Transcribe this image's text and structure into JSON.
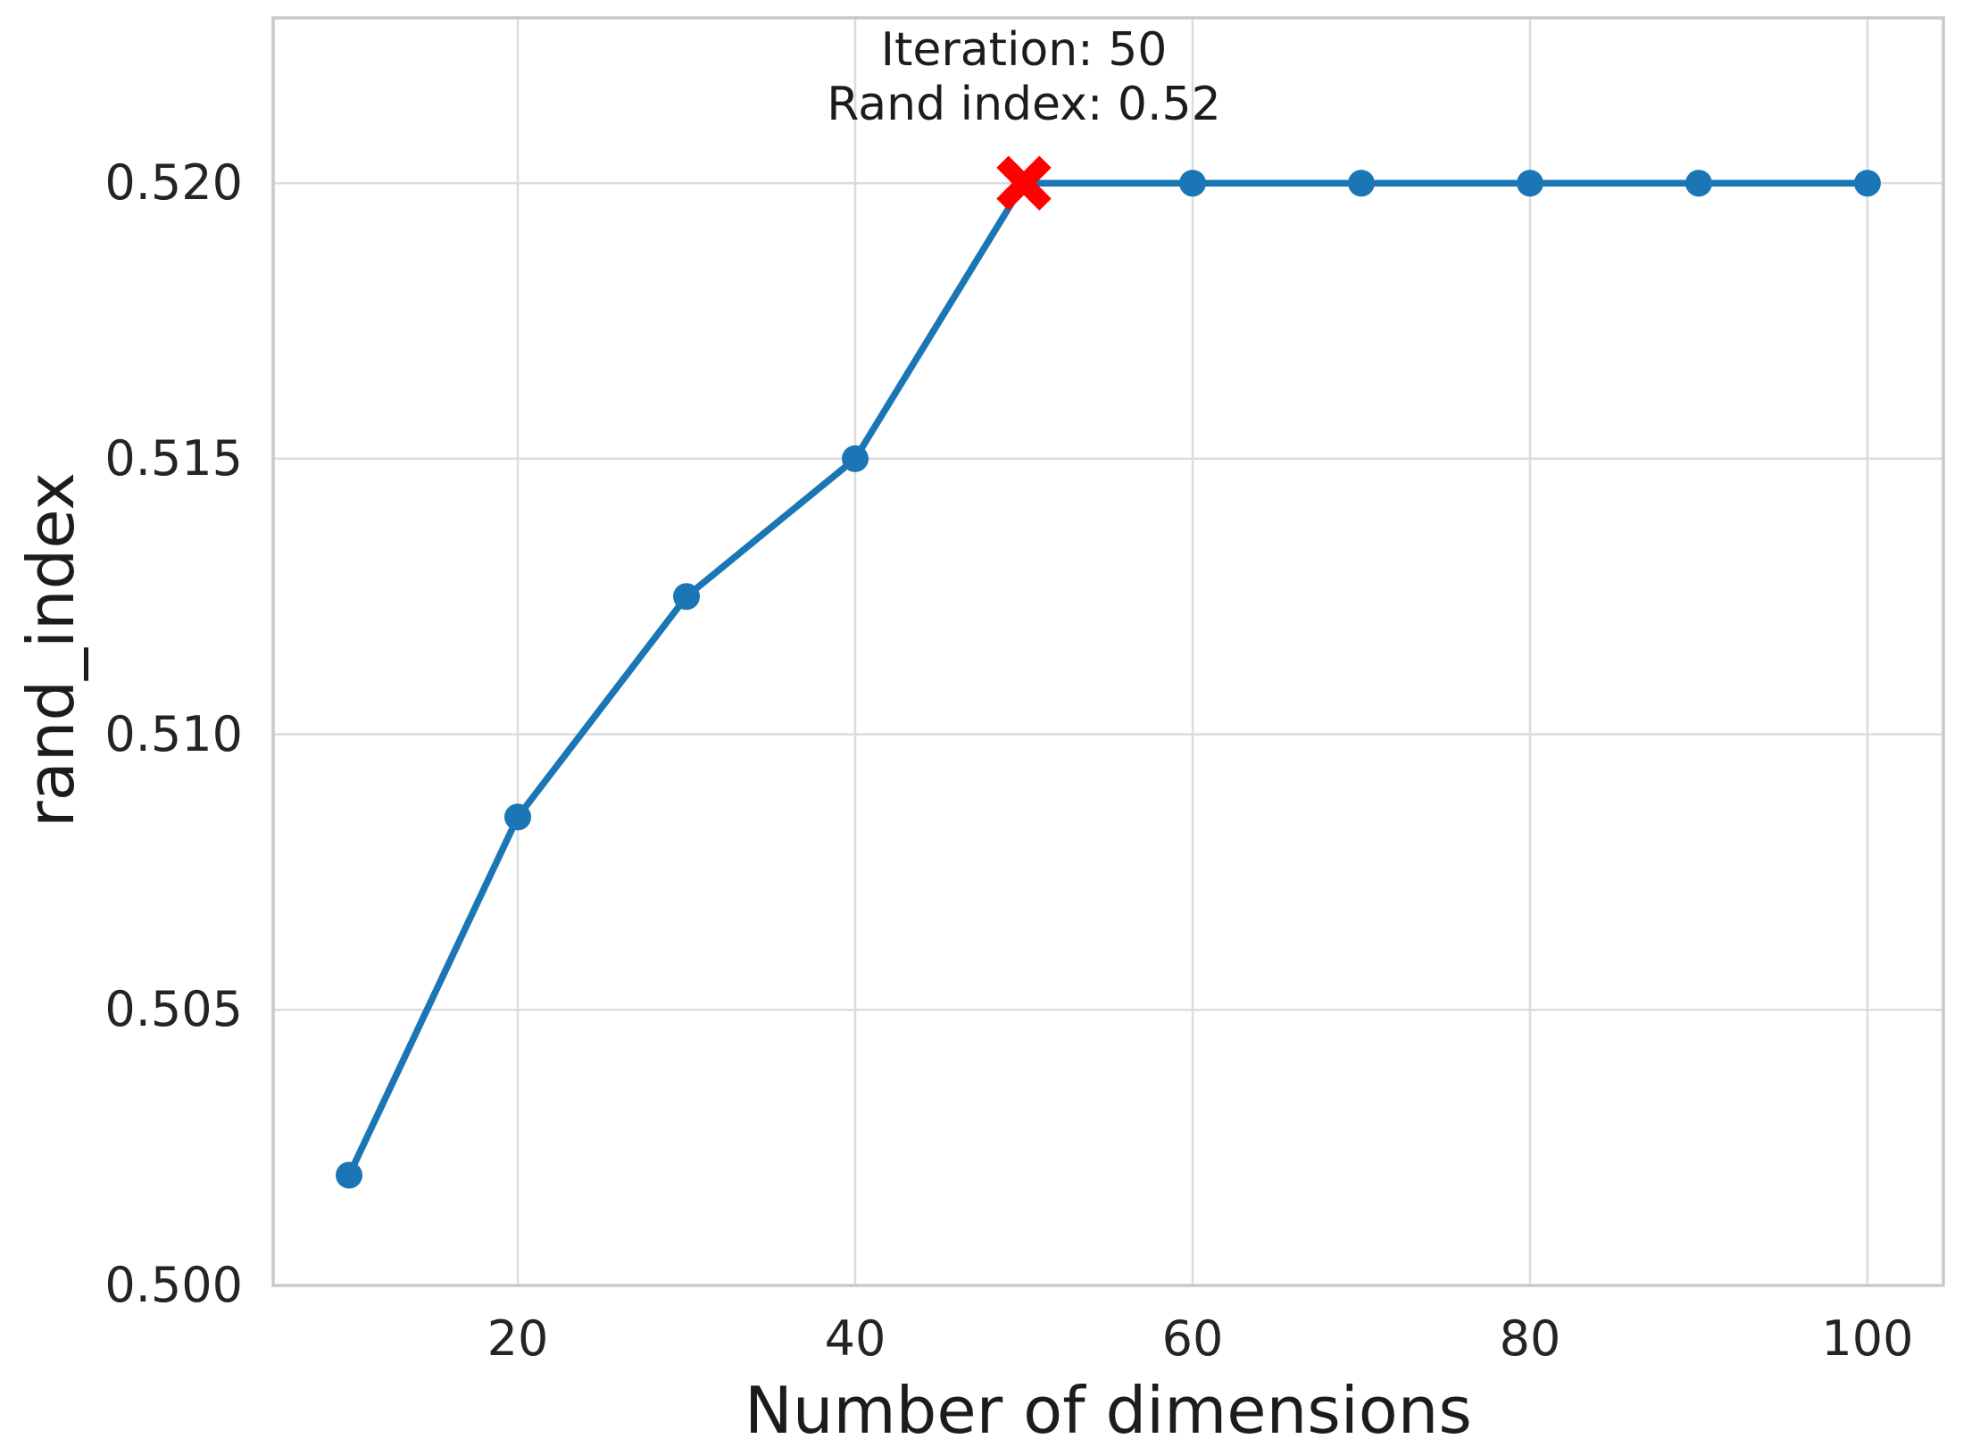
{
  "figure": {
    "xlabel": "Number of dimensions",
    "ylabel": "rand_index"
  },
  "chart_data": {
    "type": "line",
    "title": "",
    "xlabel": "Number of dimensions",
    "ylabel": "rand_index",
    "x": [
      10,
      20,
      30,
      40,
      50,
      60,
      70,
      80,
      90,
      100
    ],
    "series": [
      {
        "name": "rand_index",
        "values": [
          0.502,
          0.5085,
          0.5125,
          0.515,
          0.52,
          0.52,
          0.52,
          0.52,
          0.52,
          0.52
        ],
        "color": "#1b76b5",
        "marker": "circle"
      }
    ],
    "xlim": [
      5.5,
      104.5
    ],
    "ylim": [
      0.5,
      0.523
    ],
    "xticks": [
      20,
      40,
      60,
      80,
      100
    ],
    "xtick_labels": [
      "20",
      "40",
      "60",
      "80",
      "100"
    ],
    "yticks": [
      0.5,
      0.505,
      0.51,
      0.515,
      0.52
    ],
    "ytick_labels": [
      "0.500",
      "0.505",
      "0.510",
      "0.515",
      "0.520"
    ],
    "grid": true,
    "legend_position": "none",
    "highlight_point": {
      "x": 50,
      "y": 0.52,
      "marker": "X",
      "color": "#ff0000"
    },
    "annotation": {
      "line1": "Iteration: 50",
      "line2": "Rand index: 0.52",
      "anchor_x": 50,
      "anchor_y": 0.52,
      "position": "above"
    },
    "colors": {
      "line": "#1b76b5",
      "highlight": "#ff0000",
      "grid": "#dcdcdc",
      "spine": "#c9c9c9",
      "text": "#242424",
      "background": "#ffffff"
    }
  }
}
